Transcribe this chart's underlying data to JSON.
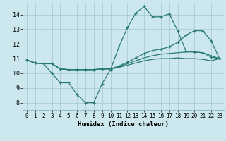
{
  "xlabel": "Humidex (Indice chaleur)",
  "xlim": [
    -0.5,
    23.5
  ],
  "ylim": [
    7.5,
    14.8
  ],
  "bg_color": "#cce8ee",
  "grid_color": "#aaccd4",
  "line_color": "#2a7a72",
  "xticks": [
    0,
    1,
    2,
    3,
    4,
    5,
    6,
    7,
    8,
    9,
    10,
    11,
    12,
    13,
    14,
    15,
    16,
    17,
    18,
    19,
    20,
    21,
    22,
    23
  ],
  "yticks": [
    8,
    9,
    10,
    11,
    12,
    13,
    14
  ],
  "line1_x": [
    0,
    1,
    2,
    3,
    4,
    5,
    6,
    7,
    8,
    9,
    10,
    11,
    12,
    13,
    14,
    15,
    16,
    17,
    18,
    19,
    20,
    21,
    22,
    23
  ],
  "line1_y": [
    10.9,
    10.7,
    10.65,
    10.0,
    9.35,
    9.35,
    8.55,
    8.0,
    8.0,
    9.3,
    10.25,
    11.8,
    13.1,
    14.1,
    14.55,
    13.85,
    13.85,
    14.05,
    12.9,
    11.5,
    11.45,
    11.4,
    11.1,
    11.0
  ],
  "line2_x": [
    0,
    1,
    2,
    3,
    4,
    5,
    6,
    7,
    8,
    9,
    10,
    11,
    12,
    13,
    14,
    15,
    16,
    17,
    18,
    19,
    20,
    21,
    22,
    23
  ],
  "line2_y": [
    10.9,
    10.7,
    10.65,
    10.65,
    10.3,
    10.25,
    10.25,
    10.25,
    10.25,
    10.3,
    10.3,
    10.5,
    10.75,
    11.05,
    11.35,
    11.55,
    11.65,
    11.8,
    12.1,
    12.6,
    12.9,
    12.9,
    12.2,
    11.0
  ],
  "line3_x": [
    0,
    1,
    2,
    3,
    4,
    5,
    6,
    7,
    8,
    9,
    10,
    11,
    12,
    13,
    14,
    15,
    16,
    17,
    18,
    19,
    20,
    21,
    22,
    23
  ],
  "line3_y": [
    10.9,
    10.7,
    10.65,
    10.65,
    10.3,
    10.25,
    10.25,
    10.25,
    10.25,
    10.3,
    10.3,
    10.45,
    10.65,
    10.85,
    11.05,
    11.2,
    11.3,
    11.35,
    11.4,
    11.45,
    11.45,
    11.4,
    11.2,
    11.0
  ],
  "line4_x": [
    0,
    1,
    2,
    3,
    4,
    5,
    6,
    7,
    8,
    9,
    10,
    11,
    12,
    13,
    14,
    15,
    16,
    17,
    18,
    19,
    20,
    21,
    22,
    23
  ],
  "line4_y": [
    10.9,
    10.7,
    10.65,
    10.65,
    10.3,
    10.25,
    10.25,
    10.25,
    10.25,
    10.3,
    10.3,
    10.4,
    10.55,
    10.7,
    10.85,
    10.95,
    11.0,
    11.0,
    11.05,
    11.0,
    11.0,
    10.95,
    10.85,
    11.0
  ]
}
